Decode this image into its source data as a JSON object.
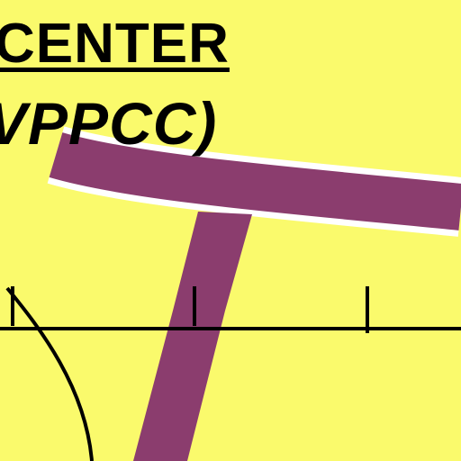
{
  "map": {
    "label_line1": "CENTER",
    "label_line2": "VPPCC)",
    "colors": {
      "background": "#fafa6c",
      "route": "#8b3d6e",
      "route_casing": "#ffffff",
      "line": "#000000",
      "text": "#000000"
    }
  }
}
